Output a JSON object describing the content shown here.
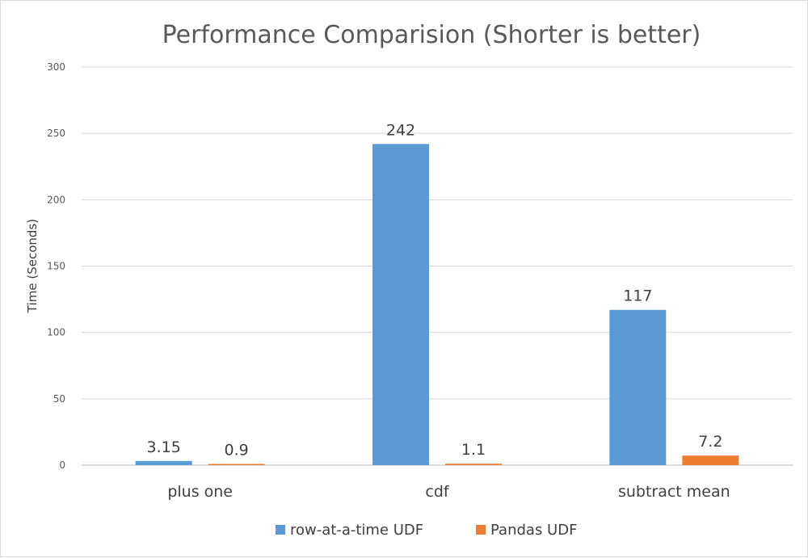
{
  "chart_data": {
    "type": "bar",
    "title": "Performance Comparision (Shorter is better)",
    "ylabel": "Time (Seconds)",
    "xlabel": "",
    "ylim": [
      0,
      300
    ],
    "yticks": [
      0,
      50,
      100,
      150,
      200,
      250,
      300
    ],
    "grid": true,
    "legend_position": "bottom",
    "categories": [
      "plus one",
      "cdf",
      "subtract mean"
    ],
    "series": [
      {
        "name": "row-at-a-time UDF",
        "color": "#5B9BD5",
        "values": [
          3.15,
          242,
          117
        ],
        "labels": [
          "3.15",
          "242",
          "117"
        ]
      },
      {
        "name": "Pandas UDF",
        "color": "#ED7D31",
        "values": [
          0.9,
          1.1,
          7.2
        ],
        "labels": [
          "0.9",
          "1.1",
          "7.2"
        ]
      }
    ]
  }
}
